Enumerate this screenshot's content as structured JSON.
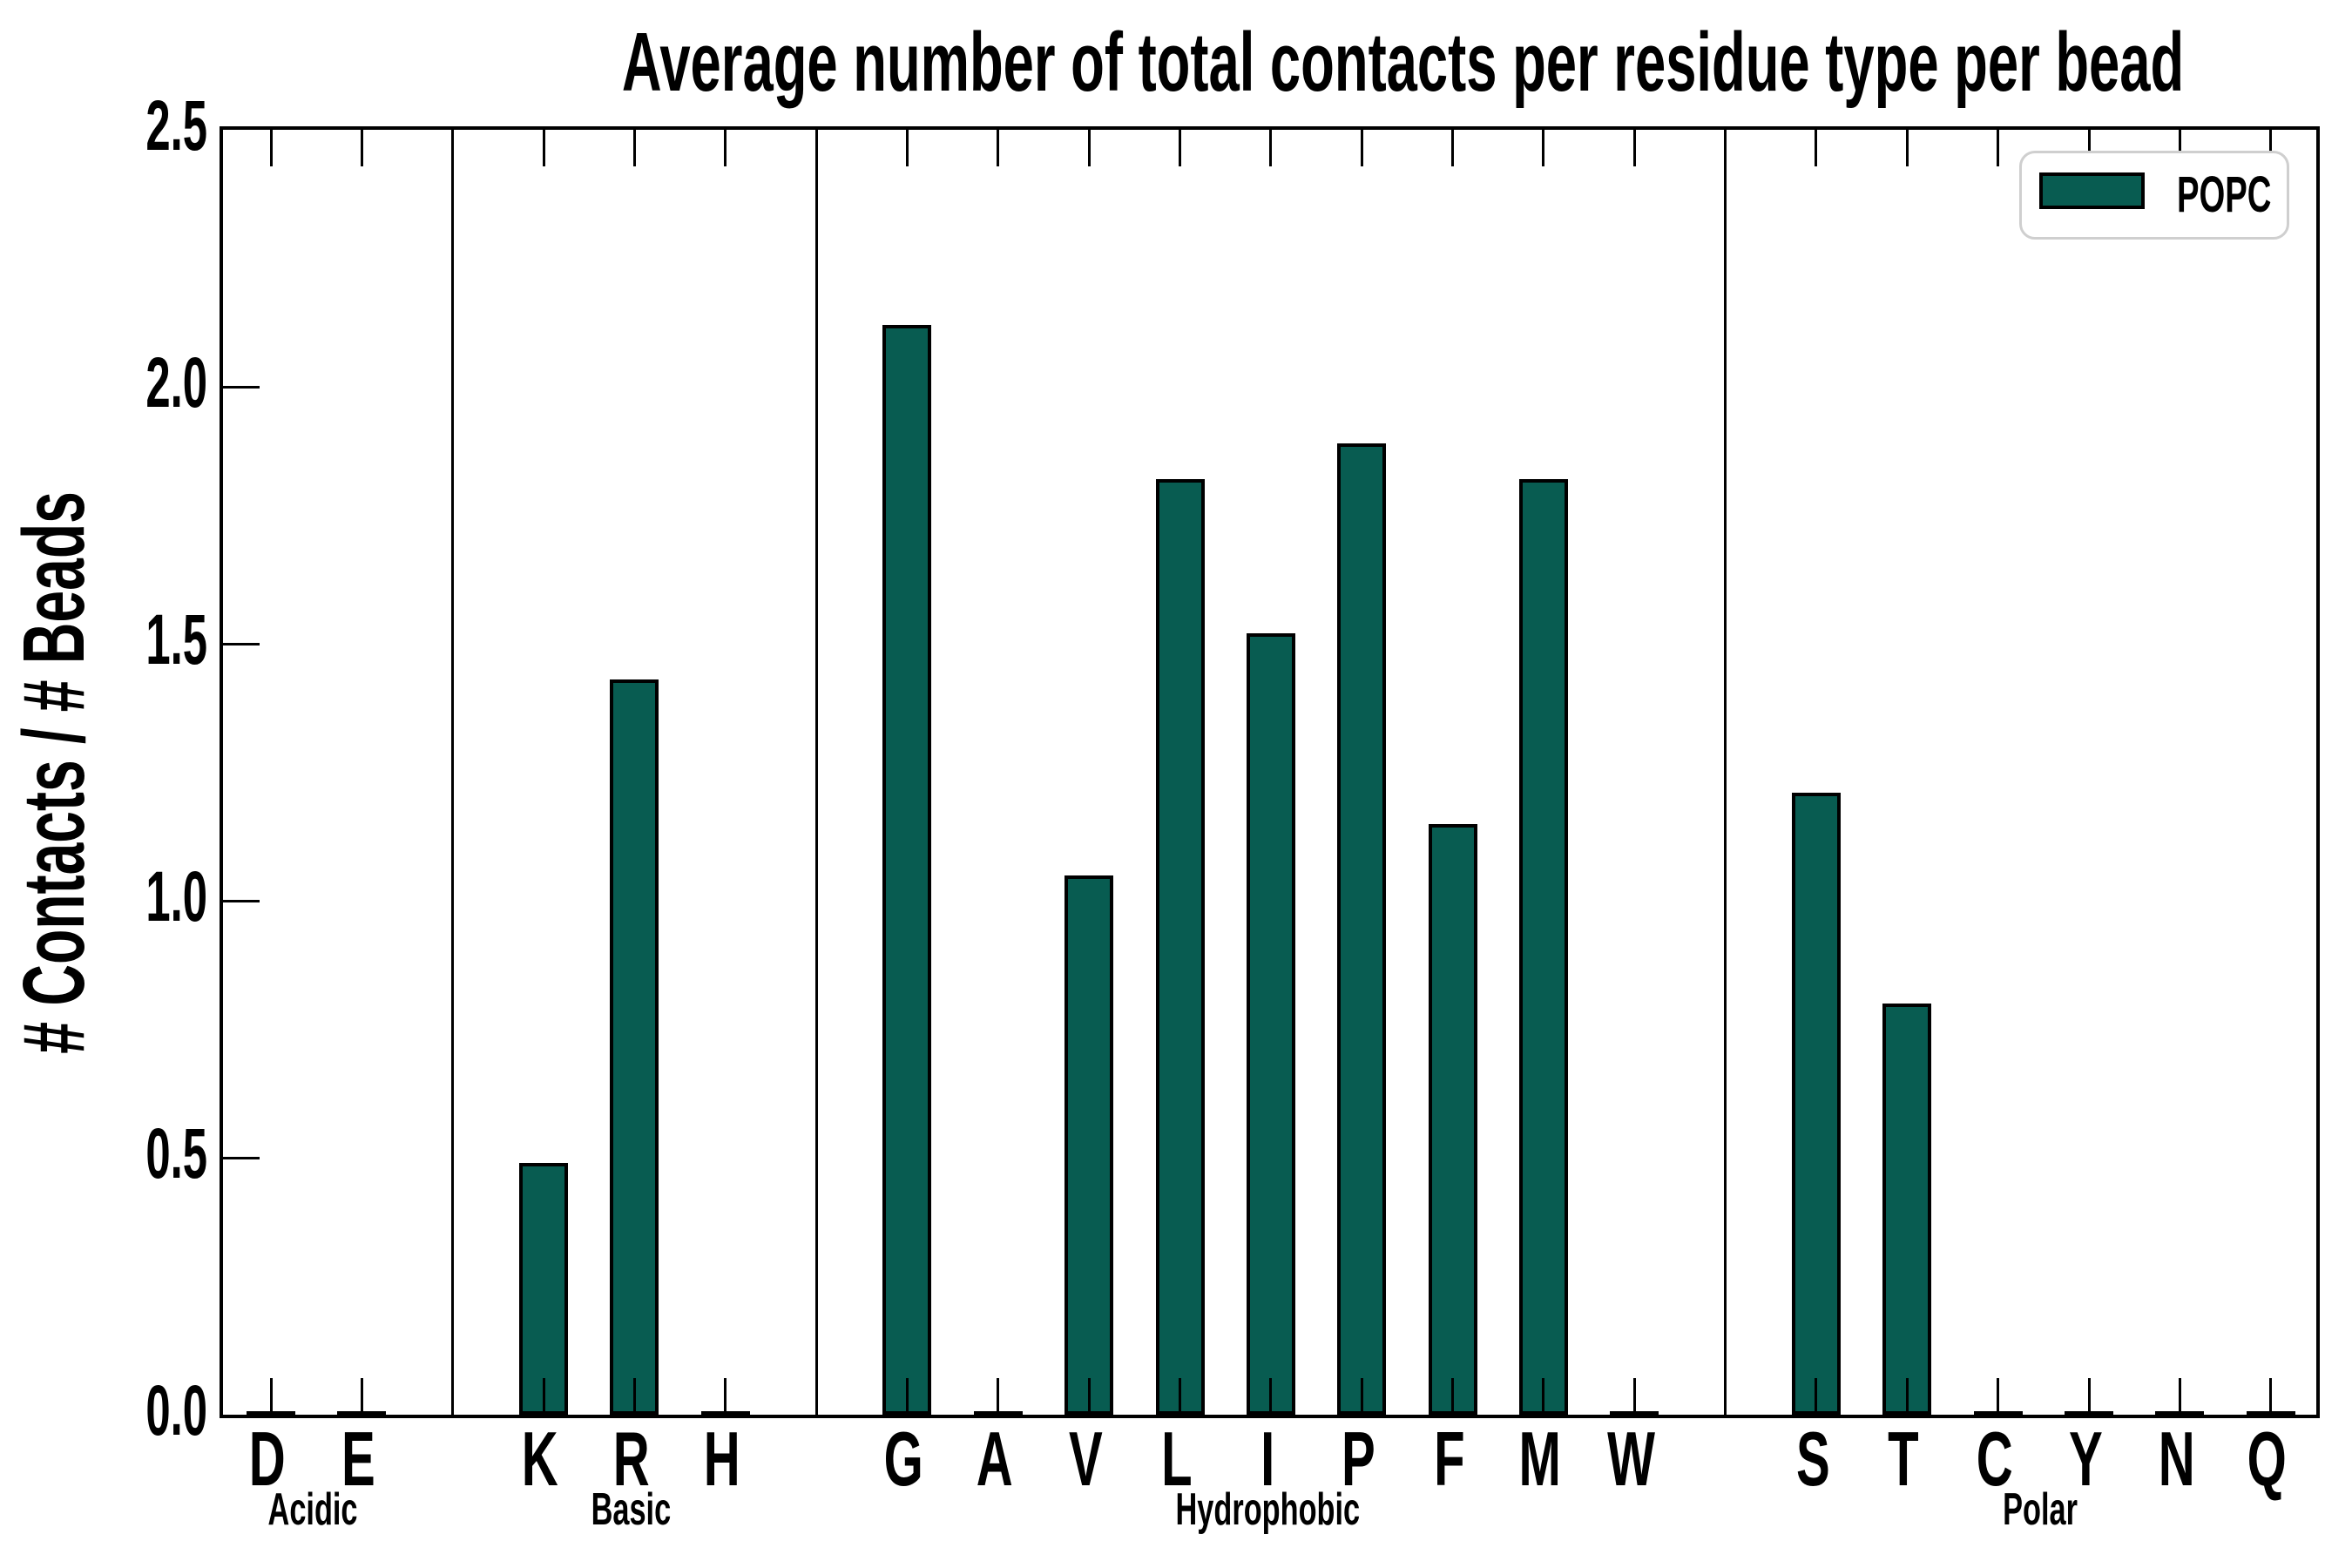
{
  "title": "Average number of total contacts per residue type per bead",
  "ylabel": "# Contacts / # Beads",
  "legend": {
    "label": "POPC"
  },
  "colors": {
    "bar_fill": "#085c51",
    "bar_edge": "#000000",
    "axis": "#000000",
    "legend_border": "#cfcfcf",
    "background": "#ffffff"
  },
  "chart_data": {
    "type": "bar",
    "title": "Average number of total contacts per residue type per bead",
    "xlabel": "",
    "ylabel": "# Contacts / # Beads",
    "ylim": [
      0.0,
      2.5
    ],
    "y_ticks": [
      "0.0",
      "0.5",
      "1.0",
      "1.5",
      "2.0",
      "2.5"
    ],
    "grid": false,
    "legend_position": "upper right",
    "series_name": "POPC",
    "groups": [
      {
        "label": "Acidic",
        "categories": [
          "D",
          "E"
        ],
        "values": [
          0.005,
          0.005
        ]
      },
      {
        "label": "Basic",
        "categories": [
          "K",
          "R",
          "H"
        ],
        "values": [
          0.49,
          1.43,
          0.005
        ]
      },
      {
        "label": "Hydrophobic",
        "categories": [
          "G",
          "A",
          "V",
          "L",
          "I",
          "P",
          "F",
          "M",
          "W"
        ],
        "values": [
          2.12,
          0.005,
          1.05,
          1.82,
          1.52,
          1.89,
          1.15,
          1.82,
          0.005
        ]
      },
      {
        "label": "Polar",
        "categories": [
          "S",
          "T",
          "C",
          "Y",
          "N",
          "Q"
        ],
        "values": [
          1.21,
          0.8,
          0.005,
          0.005,
          0.005,
          0.005
        ]
      }
    ]
  }
}
